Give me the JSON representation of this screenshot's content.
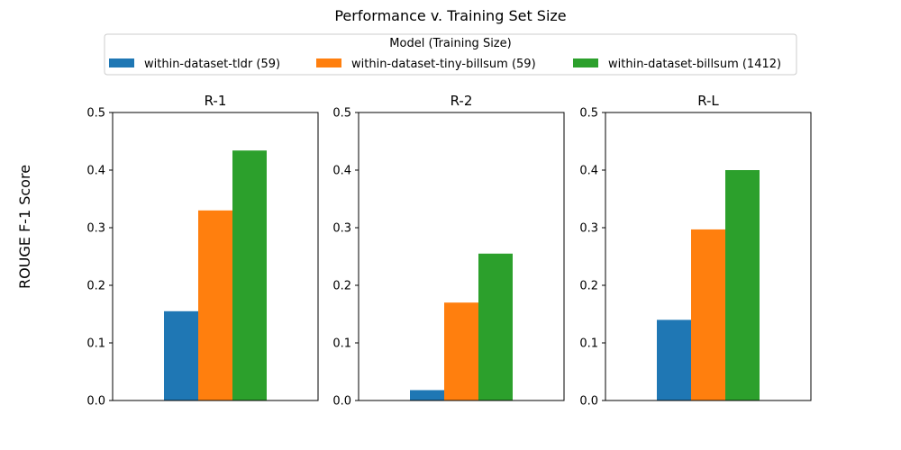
{
  "title": "Performance v. Training Set Size",
  "ylabel": "ROUGE F-1 Score",
  "legend": {
    "title": "Model (Training Size)",
    "placement": "top-center"
  },
  "colors": {
    "within-dataset-tldr (59)": "#1f77b4",
    "within-dataset-tiny-billsum (59)": "#ff7f0e",
    "within-dataset-billsum (1412)": "#2ca02c"
  },
  "chart_data": {
    "type": "bar",
    "series": [
      {
        "name": "within-dataset-tldr (59)",
        "color": "#1f77b4"
      },
      {
        "name": "within-dataset-tiny-billsum (59)",
        "color": "#ff7f0e"
      },
      {
        "name": "within-dataset-billsum (1412)",
        "color": "#2ca02c"
      }
    ],
    "panels": [
      {
        "title": "R-1",
        "values": [
          0.155,
          0.33,
          0.434
        ]
      },
      {
        "title": "R-2",
        "values": [
          0.018,
          0.17,
          0.255
        ]
      },
      {
        "title": "R-L",
        "values": [
          0.14,
          0.297,
          0.4
        ]
      }
    ],
    "ylim": [
      0,
      0.5
    ],
    "yticks": [
      "0.0",
      "0.1",
      "0.2",
      "0.3",
      "0.4",
      "0.5"
    ],
    "grid": false
  }
}
